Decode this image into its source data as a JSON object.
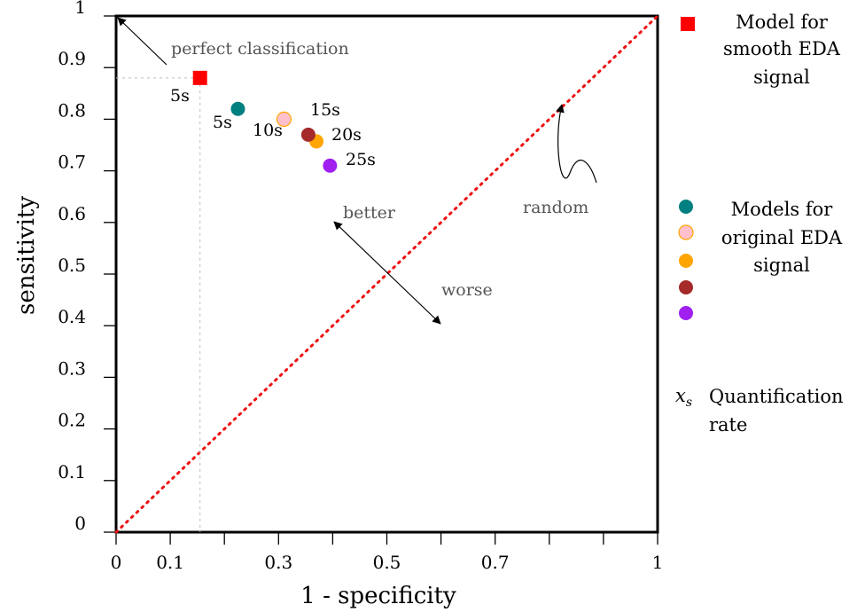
{
  "chart_data": {
    "type": "scatter",
    "title": "",
    "xlabel": "1 - specificity",
    "ylabel": "sensitivity",
    "xlim": [
      0,
      1
    ],
    "ylim": [
      0,
      1
    ],
    "x_ticks": [
      0,
      0.1,
      0.2,
      0.3,
      0.4,
      0.5,
      0.6,
      0.7,
      0.8,
      0.9,
      1
    ],
    "x_tick_labels": [
      "0",
      "0.1",
      "",
      "0.3",
      "",
      "0.5",
      "",
      "0.7",
      "",
      "",
      "1"
    ],
    "y_ticks": [
      0,
      0.1,
      0.2,
      0.3,
      0.4,
      0.5,
      0.6,
      0.7,
      0.8,
      0.9,
      1
    ],
    "y_tick_labels": [
      "0",
      "0.1",
      "0.2",
      "0.3",
      "0.4",
      "0.5",
      "0.6",
      "0.7",
      "0.8",
      "0.9",
      "1"
    ],
    "grid": false,
    "legend_position": "right",
    "random_line": {
      "label": "random",
      "color": "#ee1111",
      "style": "dotted"
    },
    "series": [
      {
        "name": "Model for smooth EDA signal",
        "marker": "square",
        "color": "#ff0000",
        "points": [
          {
            "x": 0.155,
            "y": 0.88,
            "label": "5s"
          }
        ]
      },
      {
        "name": "Models for original EDA signal",
        "marker": "circle",
        "points": [
          {
            "x": 0.225,
            "y": 0.82,
            "label": "5s",
            "color": "#008080"
          },
          {
            "x": 0.31,
            "y": 0.8,
            "label": "10s",
            "color": "#ffc0cb"
          },
          {
            "x": 0.37,
            "y": 0.757,
            "label": "",
            "color": "#ffa500"
          },
          {
            "x": 0.355,
            "y": 0.77,
            "label": "20s",
            "color": "#a52a2a"
          },
          {
            "x": 0.395,
            "y": 0.71,
            "label": "25s",
            "color": "#a020f0"
          }
        ]
      }
    ],
    "extra_labels": {
      "fifteen": "15s"
    },
    "annotations": {
      "perfect": "perfect classification",
      "better": "better",
      "worse": "worse",
      "random": "random"
    },
    "legend": {
      "smooth": [
        "Model for",
        "smooth EDA",
        "signal"
      ],
      "original": [
        "Models for",
        "original EDA",
        "signal"
      ],
      "original_colors": [
        "#008080",
        "#ffc0cb",
        "#ffa500",
        "#a52a2a",
        "#a020f0"
      ],
      "rate_symbol": "x",
      "rate_subscript": "s",
      "rate": [
        "Quantification",
        "rate"
      ]
    }
  }
}
